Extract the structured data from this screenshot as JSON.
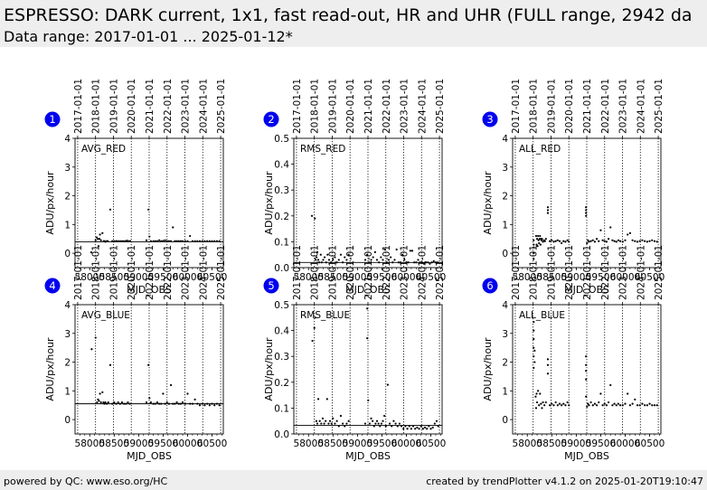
{
  "header": {
    "title": "ESPRESSO: DARK current, 1x1, fast read-out, HR and UHR (FULL range, 2942 da",
    "subtitle": "Data range: 2017-01-01 ... 2025-01-12*"
  },
  "footer": {
    "left": "powered by QC: www.eso.org/HC",
    "right": "created by trendPlotter v4.1.2 on 2025-01-20T19:10:47"
  },
  "date_axis": {
    "labels": [
      "2017-01-01",
      "2018-01-01",
      "2019-01-01",
      "2020-01-01",
      "2021-01-01",
      "2022-01-01",
      "2023-01-01",
      "2024-01-01",
      "2025-01-01"
    ],
    "mjd": [
      57754,
      58119,
      58484,
      58849,
      59215,
      59580,
      59945,
      60310,
      60676
    ]
  },
  "chart_data": [
    {
      "panel": "1",
      "type": "scatter",
      "label": "AVG_RED",
      "xlabel": "MJD_OBS",
      "ylabel": "ADU/px/hour",
      "xlim": [
        57700,
        60730
      ],
      "ylim": [
        -0.5,
        4
      ],
      "yticks": [
        0,
        1,
        2,
        3,
        4
      ],
      "yticklabels": [
        "0",
        "1",
        "2",
        "3",
        "4"
      ],
      "xticks": [
        58000,
        58500,
        59000,
        59500,
        60000,
        60500
      ],
      "xticklabels": [
        "58000",
        "58500",
        "59000",
        "59500",
        "60000",
        "60500"
      ],
      "ref_line": 0.4,
      "color": "#000000",
      "x": [
        58031,
        58120,
        58140,
        58165,
        58180,
        58200,
        58210,
        58230,
        58260,
        58285,
        58300,
        58320,
        58350,
        58370,
        58420,
        58460,
        58500,
        58540,
        58560,
        58600,
        58640,
        58680,
        58720,
        58760,
        58800,
        58830,
        59160,
        59200,
        59220,
        59250,
        59300,
        59340,
        59380,
        59420,
        59460,
        59500,
        59540,
        59580,
        59620,
        59660,
        59700,
        59740,
        59780,
        59820,
        59860,
        59900,
        59950,
        60000,
        60050,
        60100,
        60150,
        60200,
        60250,
        60300,
        60350,
        60400,
        60450,
        60500,
        60550,
        60600,
        60650
      ],
      "y": [
        0.03,
        0.45,
        0.55,
        0.5,
        0.25,
        0.5,
        0.65,
        0.45,
        0.7,
        0.42,
        0.42,
        0.4,
        0.42,
        0.42,
        1.52,
        0.42,
        0.42,
        0.42,
        0.42,
        0.42,
        0.42,
        0.42,
        0.42,
        0.44,
        0.42,
        0.42,
        0.45,
        1.52,
        0.58,
        0.42,
        0.42,
        0.42,
        0.42,
        0.45,
        0.42,
        0.43,
        0.45,
        0.42,
        0.42,
        0.42,
        0.9,
        0.42,
        0.42,
        0.42,
        0.42,
        0.42,
        0.42,
        0.42,
        0.6,
        0.42,
        0.42,
        0.42,
        0.42,
        0.42,
        0.42,
        0.42,
        0.42,
        0.42,
        0.42,
        0.42,
        0.42
      ]
    },
    {
      "panel": "2",
      "type": "scatter",
      "label": "RMS_RED",
      "xlabel": "MJD_OBS",
      "ylabel": "ADU/px/hour",
      "xlim": [
        57700,
        60730
      ],
      "ylim": [
        0,
        0.5
      ],
      "yticks": [
        0,
        0.1,
        0.2,
        0.3,
        0.4,
        0.5
      ],
      "yticklabels": [
        "0.0",
        "0.1",
        "0.2",
        "0.3",
        "0.4",
        "0.5"
      ],
      "xticks": [
        58000,
        58500,
        59000,
        59500,
        60000,
        60500
      ],
      "xticklabels": [
        "58000",
        "58500",
        "59000",
        "59500",
        "60000",
        "60500"
      ],
      "ref_line": 0.02,
      "color": "#000000",
      "x": [
        58070,
        58130,
        58150,
        58165,
        58180,
        58200,
        58220,
        58250,
        58270,
        58300,
        58330,
        58360,
        58390,
        58420,
        58460,
        58500,
        58540,
        58580,
        58620,
        58660,
        58700,
        58740,
        58780,
        58820,
        59160,
        59200,
        59240,
        59280,
        59320,
        59360,
        59400,
        59440,
        59480,
        59520,
        59560,
        59600,
        59640,
        59680,
        59720,
        59760,
        59800,
        59840,
        59880,
        59920,
        59960,
        60000,
        60040,
        60080,
        60120,
        60160,
        60200,
        60240,
        60280,
        60320,
        60360,
        60400,
        60440,
        60480,
        60520,
        60560,
        60600,
        60640
      ],
      "y": [
        0.2,
        0.19,
        0.03,
        0.04,
        0.06,
        0.03,
        0.02,
        0.05,
        0.02,
        0.03,
        0.04,
        0.02,
        0.05,
        0.03,
        0.02,
        0.03,
        0.04,
        0.02,
        0.03,
        0.05,
        0.02,
        0.04,
        0.03,
        0.05,
        0.03,
        0.05,
        0.02,
        0.03,
        0.04,
        0.06,
        0.03,
        0.02,
        0.04,
        0.03,
        0.07,
        0.02,
        0.03,
        0.04,
        0.02,
        0.03,
        0.07,
        0.02,
        0.02,
        0.05,
        0.03,
        0.02,
        0.02,
        0.065,
        0.065,
        0.02,
        0.02,
        0.03,
        0.02,
        0.02,
        0.015,
        0.02,
        0.02,
        0.015,
        0.02,
        0.025,
        0.02,
        0.02
      ]
    },
    {
      "panel": "3",
      "type": "scatter",
      "label": "ALL_RED",
      "xlabel": "MJD_OBS",
      "ylabel": "ADU/px/hour",
      "xlim": [
        57700,
        60730
      ],
      "ylim": [
        -0.5,
        4
      ],
      "yticks": [
        0,
        1,
        2,
        3,
        4
      ],
      "yticklabels": [
        "0",
        "1",
        "2",
        "3",
        "4"
      ],
      "xticks": [
        58000,
        58500,
        59000,
        59500,
        60000,
        60500
      ],
      "xticklabels": [
        "58000",
        "58500",
        "59000",
        "59500",
        "60000",
        "60500"
      ],
      "color": "#000000",
      "x": [
        58130,
        58130,
        58130,
        58130,
        58130,
        58180,
        58190,
        58200,
        58210,
        58220,
        58230,
        58240,
        58250,
        58260,
        58270,
        58280,
        58290,
        58300,
        58320,
        58340,
        58360,
        58380,
        58420,
        58420,
        58420,
        58460,
        58500,
        58540,
        58580,
        58620,
        58660,
        58700,
        58740,
        58780,
        58820,
        58850,
        59200,
        59200,
        59200,
        59200,
        59220,
        59240,
        59260,
        59300,
        59340,
        59380,
        59420,
        59460,
        59500,
        59540,
        59580,
        59620,
        59660,
        59700,
        59740,
        59780,
        59820,
        59860,
        59900,
        59950,
        60000,
        60050,
        60100,
        60150,
        60200,
        60250,
        60300,
        60350,
        60400,
        60450,
        60500,
        60550,
        60600,
        60650
      ],
      "y": [
        -0.2,
        0.0,
        0.2,
        0.3,
        0.45,
        0.6,
        0.3,
        0.5,
        0.25,
        0.6,
        0.45,
        0.35,
        0.5,
        0.6,
        0.3,
        0.5,
        0.45,
        0.5,
        0.4,
        0.45,
        0.42,
        0.5,
        1.4,
        1.5,
        1.6,
        0.42,
        0.45,
        0.4,
        0.42,
        0.45,
        0.42,
        0.35,
        0.42,
        0.4,
        0.45,
        0.4,
        1.3,
        1.4,
        1.5,
        1.6,
        0.35,
        0.45,
        0.4,
        0.42,
        0.45,
        0.4,
        0.5,
        0.42,
        0.8,
        0.45,
        0.42,
        0.4,
        0.5,
        0.9,
        0.45,
        0.42,
        0.4,
        0.45,
        0.42,
        0.4,
        0.45,
        0.65,
        0.7,
        0.45,
        0.42,
        0.4,
        0.42,
        0.45,
        0.42,
        0.4,
        0.42,
        0.45,
        0.42,
        0.4
      ]
    },
    {
      "panel": "4",
      "type": "scatter",
      "label": "AVG_BLUE",
      "xlabel": "MJD_OBS",
      "ylabel": "ADU/px/hour",
      "xlim": [
        57700,
        60730
      ],
      "ylim": [
        -0.5,
        4
      ],
      "yticks": [
        0,
        1,
        2,
        3,
        4
      ],
      "yticklabels": [
        "0",
        "1",
        "2",
        "3",
        "4"
      ],
      "xticks": [
        58000,
        58500,
        59000,
        59500,
        60000,
        60500
      ],
      "xticklabels": [
        "58000",
        "58500",
        "59000",
        "59500",
        "60000",
        "60500"
      ],
      "ref_line": 0.55,
      "color": "#000000",
      "x": [
        58040,
        58120,
        58150,
        58170,
        58190,
        58210,
        58230,
        58260,
        58280,
        58300,
        58320,
        58350,
        58380,
        58420,
        58460,
        58500,
        58540,
        58580,
        58620,
        58660,
        58700,
        58740,
        58780,
        58820,
        59160,
        59200,
        59220,
        59250,
        59300,
        59340,
        59380,
        59420,
        59460,
        59500,
        59540,
        59580,
        59620,
        59660,
        59700,
        59740,
        59780,
        59820,
        59860,
        59900,
        59950,
        60000,
        60050,
        60100,
        60150,
        60200,
        60250,
        60300,
        60350,
        60400,
        60450,
        60500,
        60550,
        60600,
        60650
      ],
      "y": [
        2.45,
        2.85,
        0.6,
        0.7,
        0.65,
        0.9,
        0.6,
        0.95,
        0.6,
        0.55,
        0.6,
        0.55,
        0.6,
        1.9,
        0.55,
        0.6,
        0.55,
        0.6,
        0.55,
        0.6,
        0.55,
        0.55,
        0.6,
        0.55,
        0.6,
        1.9,
        0.75,
        0.6,
        0.55,
        0.55,
        0.6,
        0.55,
        0.55,
        0.9,
        0.55,
        0.6,
        0.55,
        1.2,
        0.55,
        0.55,
        0.6,
        0.55,
        0.55,
        0.6,
        0.55,
        0.9,
        0.55,
        0.55,
        0.7,
        0.55,
        0.5,
        0.55,
        0.5,
        0.55,
        0.5,
        0.55,
        0.5,
        0.55,
        0.5
      ]
    },
    {
      "panel": "5",
      "type": "scatter",
      "label": "RMS_BLUE",
      "xlabel": "MJD_OBS",
      "ylabel": "ADU/px/hour",
      "xlim": [
        57700,
        60730
      ],
      "ylim": [
        0,
        0.5
      ],
      "yticks": [
        0,
        0.1,
        0.2,
        0.3,
        0.4,
        0.5
      ],
      "yticklabels": [
        "0.0",
        "0.1",
        "0.2",
        "0.3",
        "0.4",
        "0.5"
      ],
      "xticks": [
        58000,
        58500,
        59000,
        59500,
        60000,
        60500
      ],
      "xticklabels": [
        "58000",
        "58500",
        "59000",
        "59500",
        "60000",
        "60500"
      ],
      "ref_line": 0.033,
      "color": "#000000",
      "x": [
        58080,
        58120,
        58140,
        58160,
        58180,
        58200,
        58230,
        58260,
        58290,
        58320,
        58350,
        58380,
        58410,
        58440,
        58470,
        58500,
        58540,
        58580,
        58620,
        58660,
        58700,
        58740,
        58780,
        58820,
        59160,
        59200,
        59200,
        59220,
        59250,
        59280,
        59310,
        59340,
        59370,
        59400,
        59430,
        59460,
        59490,
        59520,
        59550,
        59580,
        59620,
        59660,
        59700,
        59740,
        59780,
        59820,
        59860,
        59900,
        59940,
        59980,
        60020,
        60060,
        60100,
        60140,
        60180,
        60220,
        60260,
        60300,
        60340,
        60380,
        60420,
        60460,
        60500,
        60540,
        60580,
        60620,
        60650
      ],
      "y": [
        0.36,
        0.41,
        0.45,
        0.05,
        0.04,
        0.135,
        0.05,
        0.04,
        0.06,
        0.04,
        0.05,
        0.135,
        0.04,
        0.05,
        0.04,
        0.06,
        0.04,
        0.05,
        0.03,
        0.07,
        0.04,
        0.03,
        0.04,
        0.05,
        0.04,
        0.485,
        0.37,
        0.13,
        0.04,
        0.06,
        0.05,
        0.03,
        0.04,
        0.05,
        0.04,
        0.03,
        0.04,
        0.05,
        0.07,
        0.03,
        0.19,
        0.04,
        0.03,
        0.05,
        0.04,
        0.03,
        0.04,
        0.03,
        0.02,
        0.03,
        0.02,
        0.03,
        0.02,
        0.03,
        0.02,
        0.025,
        0.02,
        0.03,
        0.02,
        0.025,
        0.02,
        0.03,
        0.02,
        0.025,
        0.04,
        0.05,
        0.03
      ]
    },
    {
      "panel": "6",
      "type": "scatter",
      "label": "ALL_BLUE",
      "xlabel": "MJD_OBS",
      "ylabel": "ADU/px/hour",
      "xlim": [
        57700,
        60730
      ],
      "ylim": [
        -0.5,
        4
      ],
      "yticks": [
        0,
        1,
        2,
        3,
        4
      ],
      "yticklabels": [
        "0",
        "1",
        "2",
        "3",
        "4"
      ],
      "xticks": [
        58000,
        58500,
        59000,
        59500,
        60000,
        60500
      ],
      "xticklabels": [
        "58000",
        "58500",
        "59000",
        "59500",
        "60000",
        "60500"
      ],
      "color": "#000000",
      "x": [
        58130,
        58130,
        58130,
        58130,
        58130,
        58130,
        58150,
        58150,
        58170,
        58180,
        58190,
        58200,
        58220,
        58240,
        58260,
        58280,
        58300,
        58320,
        58350,
        58380,
        58420,
        58420,
        58420,
        58460,
        58500,
        58540,
        58580,
        58620,
        58660,
        58700,
        58740,
        58780,
        58820,
        58850,
        59200,
        59200,
        59200,
        59200,
        59200,
        59220,
        59240,
        59260,
        59300,
        59340,
        59380,
        59420,
        59460,
        59500,
        59540,
        59580,
        59620,
        59660,
        59700,
        59740,
        59780,
        59820,
        59860,
        59900,
        59950,
        60000,
        60050,
        60100,
        60150,
        60200,
        60250,
        60300,
        60350,
        60400,
        60450,
        60500,
        60550,
        60600,
        60650
      ],
      "y": [
        1.8,
        2.2,
        2.5,
        2.8,
        3.1,
        3.4,
        2.4,
        2.0,
        0.8,
        0.4,
        0.9,
        0.6,
        1.0,
        0.5,
        0.9,
        0.55,
        0.4,
        0.6,
        0.5,
        0.6,
        1.6,
        1.9,
        2.1,
        0.5,
        0.55,
        0.5,
        0.6,
        0.5,
        0.55,
        0.5,
        0.55,
        0.5,
        0.6,
        0.5,
        0.8,
        1.4,
        1.7,
        1.9,
        2.2,
        0.45,
        0.55,
        0.5,
        0.6,
        0.5,
        0.55,
        0.5,
        0.6,
        0.9,
        0.5,
        0.55,
        0.5,
        0.6,
        1.2,
        0.5,
        0.55,
        0.5,
        0.55,
        0.5,
        0.5,
        0.55,
        0.9,
        0.5,
        0.55,
        0.7,
        0.5,
        0.5,
        0.55,
        0.5,
        0.5,
        0.55,
        0.5,
        0.5,
        0.5
      ]
    }
  ]
}
